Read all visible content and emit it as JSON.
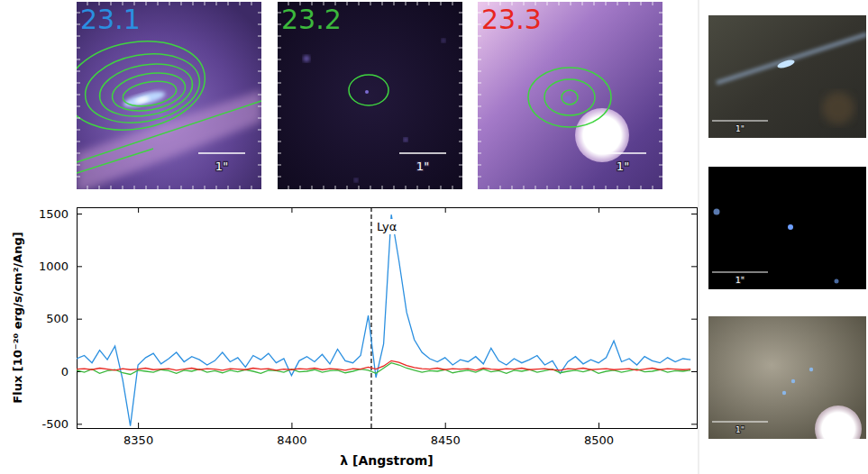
{
  "chart_data": {
    "type": "line",
    "x_label": "λ [Angstrom]",
    "y_label": "Flux [10⁻²⁰ erg/s/cm²/Ang]",
    "x": [
      8330,
      8332.5,
      8335,
      8337.5,
      8340,
      8342.5,
      8345,
      8347.5,
      8350,
      8352.5,
      8355,
      8357.5,
      8360,
      8362.5,
      8365,
      8367.5,
      8370,
      8372.5,
      8375,
      8377.5,
      8380,
      8382.5,
      8385,
      8387.5,
      8390,
      8392.5,
      8395,
      8397.5,
      8400,
      8402.5,
      8405,
      8407.5,
      8410,
      8412.5,
      8415,
      8417.5,
      8420,
      8422.5,
      8425,
      8427.5,
      8430,
      8432.5,
      8435,
      8437.5,
      8440,
      8442.5,
      8445,
      8447.5,
      8450,
      8452.5,
      8455,
      8457.5,
      8460,
      8462.5,
      8465,
      8467.5,
      8470,
      8472.5,
      8475,
      8477.5,
      8480,
      8482.5,
      8485,
      8487.5,
      8490,
      8492.5,
      8495,
      8497.5,
      8500,
      8502.5,
      8505,
      8507.5,
      8510,
      8512.5,
      8515,
      8517.5,
      8520,
      8522.5,
      8525,
      8527.5,
      8530
    ],
    "series": [
      {
        "name": "23.1",
        "color": "#2a8fe0",
        "values": [
          120,
          150,
          80,
          200,
          110,
          240,
          -80,
          -520,
          60,
          130,
          170,
          70,
          120,
          180,
          90,
          140,
          110,
          60,
          100,
          180,
          90,
          130,
          40,
          150,
          110,
          170,
          80,
          120,
          -40,
          100,
          140,
          90,
          160,
          70,
          210,
          100,
          80,
          150,
          530,
          -60,
          260,
          1490,
          1050,
          560,
          300,
          180,
          120,
          90,
          130,
          60,
          110,
          90,
          140,
          70,
          220,
          100,
          60,
          120,
          80,
          110,
          150,
          60,
          100,
          -20,
          90,
          140,
          70,
          110,
          80,
          130,
          290,
          90,
          120,
          60,
          140,
          100,
          80,
          130,
          90,
          120,
          110
        ]
      },
      {
        "name": "23.2",
        "color": "#3cb83c",
        "values": [
          10,
          -10,
          20,
          -20,
          5,
          15,
          -15,
          -30,
          10,
          0,
          -10,
          15,
          5,
          -20,
          10,
          0,
          20,
          -10,
          5,
          -15,
          10,
          -5,
          15,
          0,
          -20,
          10,
          5,
          -10,
          20,
          -5,
          0,
          15,
          -10,
          5,
          10,
          -15,
          0,
          20,
          10,
          -20,
          30,
          80,
          60,
          30,
          10,
          -10,
          5,
          0,
          15,
          -15,
          0,
          10,
          -10,
          20,
          -5,
          5,
          -20,
          10,
          0,
          15,
          -10,
          5,
          20,
          -15,
          0,
          10,
          -5,
          15,
          -20,
          0,
          10,
          -10,
          5,
          20,
          -5,
          0,
          15,
          -10,
          5,
          0,
          10
        ]
      },
      {
        "name": "23.3",
        "color": "#e8261f",
        "values": [
          20,
          25,
          15,
          30,
          20,
          10,
          25,
          15,
          20,
          30,
          15,
          20,
          25,
          10,
          20,
          30,
          15,
          25,
          20,
          10,
          25,
          20,
          15,
          30,
          20,
          25,
          10,
          20,
          15,
          25,
          20,
          30,
          15,
          25,
          20,
          10,
          25,
          20,
          40,
          20,
          50,
          100,
          85,
          55,
          35,
          25,
          20,
          30,
          15,
          25,
          20,
          25,
          10,
          30,
          20,
          15,
          25,
          20,
          30,
          15,
          20,
          25,
          15,
          10,
          25,
          20,
          30,
          15,
          20,
          25,
          15,
          20,
          25,
          10,
          20,
          30,
          15,
          25,
          20,
          15,
          20
        ]
      }
    ],
    "xlim": [
      8330,
      8532
    ],
    "ylim": [
      -540,
      1560
    ],
    "xticks": [
      8350,
      8400,
      8450,
      8500
    ],
    "yticks": [
      -500,
      0,
      500,
      1000,
      1500
    ],
    "annotations": [
      {
        "x": 8426,
        "text": "Lyα",
        "line_style": "dashed"
      }
    ]
  },
  "scale_bar_label": "1\""
}
